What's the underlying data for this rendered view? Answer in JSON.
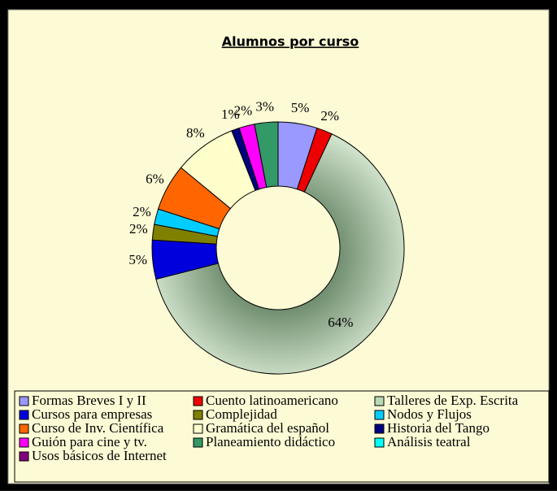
{
  "chart_data": {
    "type": "donut",
    "title": "Alumnos por curso",
    "categories": [
      "Formas Breves I y II",
      "Cuento latinoamericano",
      "Talleres de Exp. Escrita",
      "Cursos para empresas",
      "Complejidad",
      "Nodos y Flujos",
      "Curso de Inv. Científica",
      "Gramática del español",
      "Historia del Tango",
      "Guión para cine y tv.",
      "Planeamiento didáctico",
      "Análisis teatral",
      "Usos básicos de Internet"
    ],
    "values": [
      5,
      2,
      64,
      5,
      2,
      2,
      6,
      8,
      1,
      2,
      3,
      0,
      0
    ],
    "value_labels": [
      "5%",
      "2%",
      "64%",
      "5%",
      "2%",
      "2%",
      "6%",
      "8%",
      "1%",
      "2%",
      "3%",
      null,
      null
    ],
    "colors": [
      "#9999ff",
      "#ee0000",
      "#b9d8b4",
      "#0000dd",
      "#808000",
      "#00ccff",
      "#ff6600",
      "#ffffcc",
      "#000080",
      "#ff00ff",
      "#339966",
      "#00ffff",
      "#800080"
    ],
    "legend": "bottom"
  }
}
